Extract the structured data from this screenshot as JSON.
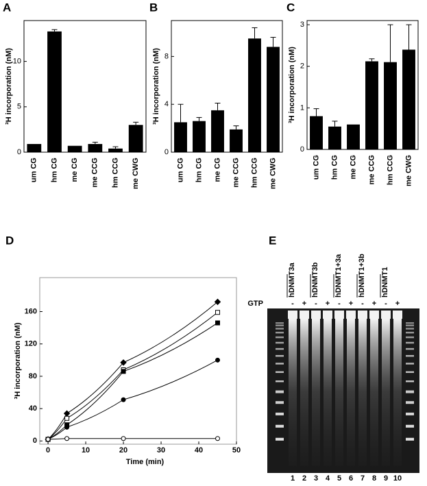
{
  "chart_data": [
    {
      "type": "bar",
      "label": "A",
      "ylabel": "³H incorporation (nM)",
      "categories": [
        "um CG",
        "hm CG",
        "me CG",
        "me CCG",
        "hm CCG",
        "me CWG"
      ],
      "values": [
        0.9,
        13.3,
        0.7,
        0.9,
        0.4,
        3.0
      ],
      "errors": [
        0,
        0.2,
        0,
        0.2,
        0.2,
        0.3
      ],
      "color": "#000000",
      "ylim": [
        0,
        14.5
      ],
      "yticks": [
        0,
        5,
        10
      ]
    },
    {
      "type": "bar",
      "label": "B",
      "ylabel": "³H incorporation (nM)",
      "categories": [
        "um CG",
        "hm CG",
        "me CG",
        "me CCG",
        "hm CCG",
        "me CWG"
      ],
      "values": [
        2.5,
        2.6,
        3.5,
        1.9,
        9.5,
        8.8
      ],
      "errors": [
        1.5,
        0.3,
        0.6,
        0.3,
        0.9,
        0.8
      ],
      "color": "#000000",
      "ylim": [
        0,
        11
      ],
      "yticks": [
        0,
        4,
        8
      ]
    },
    {
      "type": "bar",
      "label": "C",
      "ylabel": "³H incorporation (nM)",
      "categories": [
        "um CG",
        "hm CG",
        "me CG",
        "me CCG",
        "hm CCG",
        "me CWG"
      ],
      "values": [
        0.8,
        0.55,
        0.6,
        2.12,
        2.1,
        2.4
      ],
      "errors": [
        0.18,
        0.13,
        0,
        0.06,
        0.9,
        0.6
      ],
      "color": "#000000",
      "ylim": [
        0,
        3.1
      ],
      "yticks": [
        0,
        1,
        2,
        3
      ]
    },
    {
      "type": "line",
      "label": "D",
      "ylabel": "³H incorporation (nM)",
      "xlabel": "Time (min)",
      "x": [
        0,
        5,
        20,
        45
      ],
      "series": [
        {
          "color": "#000000",
          "marker": "diamond",
          "filled": true,
          "values": [
            2,
            34,
            97,
            172
          ]
        },
        {
          "color": "#000000",
          "marker": "square",
          "filled": false,
          "values": [
            2,
            28,
            88,
            159
          ]
        },
        {
          "color": "#000000",
          "marker": "square",
          "filled": true,
          "values": [
            2,
            20,
            86,
            146
          ]
        },
        {
          "color": "#000000",
          "marker": "circle",
          "filled": true,
          "values": [
            2,
            17,
            51,
            100
          ]
        },
        {
          "color": "#000000",
          "marker": "circle",
          "filled": false,
          "values": [
            2,
            3,
            3,
            3
          ]
        }
      ],
      "xlim": [
        -2.2,
        50
      ],
      "xticks": [
        0,
        10,
        20,
        30,
        40,
        50
      ],
      "ylim": [
        -4,
        202
      ],
      "yticks": [
        0,
        40,
        80,
        120,
        160
      ]
    }
  ],
  "gel": {
    "label": "E",
    "lanes": [
      "hDNMT3a",
      "hDNMT3b",
      "hDNMT1+3a",
      "hDNMT1+3b",
      "hDNMT1"
    ],
    "gtp_label": "GTP",
    "gtp_states": [
      "-",
      "+",
      "-",
      "+",
      "-",
      "+",
      "-",
      "+",
      "-",
      "+"
    ],
    "lane_numbers": [
      1,
      2,
      3,
      4,
      5,
      6,
      7,
      8,
      9,
      10
    ]
  }
}
